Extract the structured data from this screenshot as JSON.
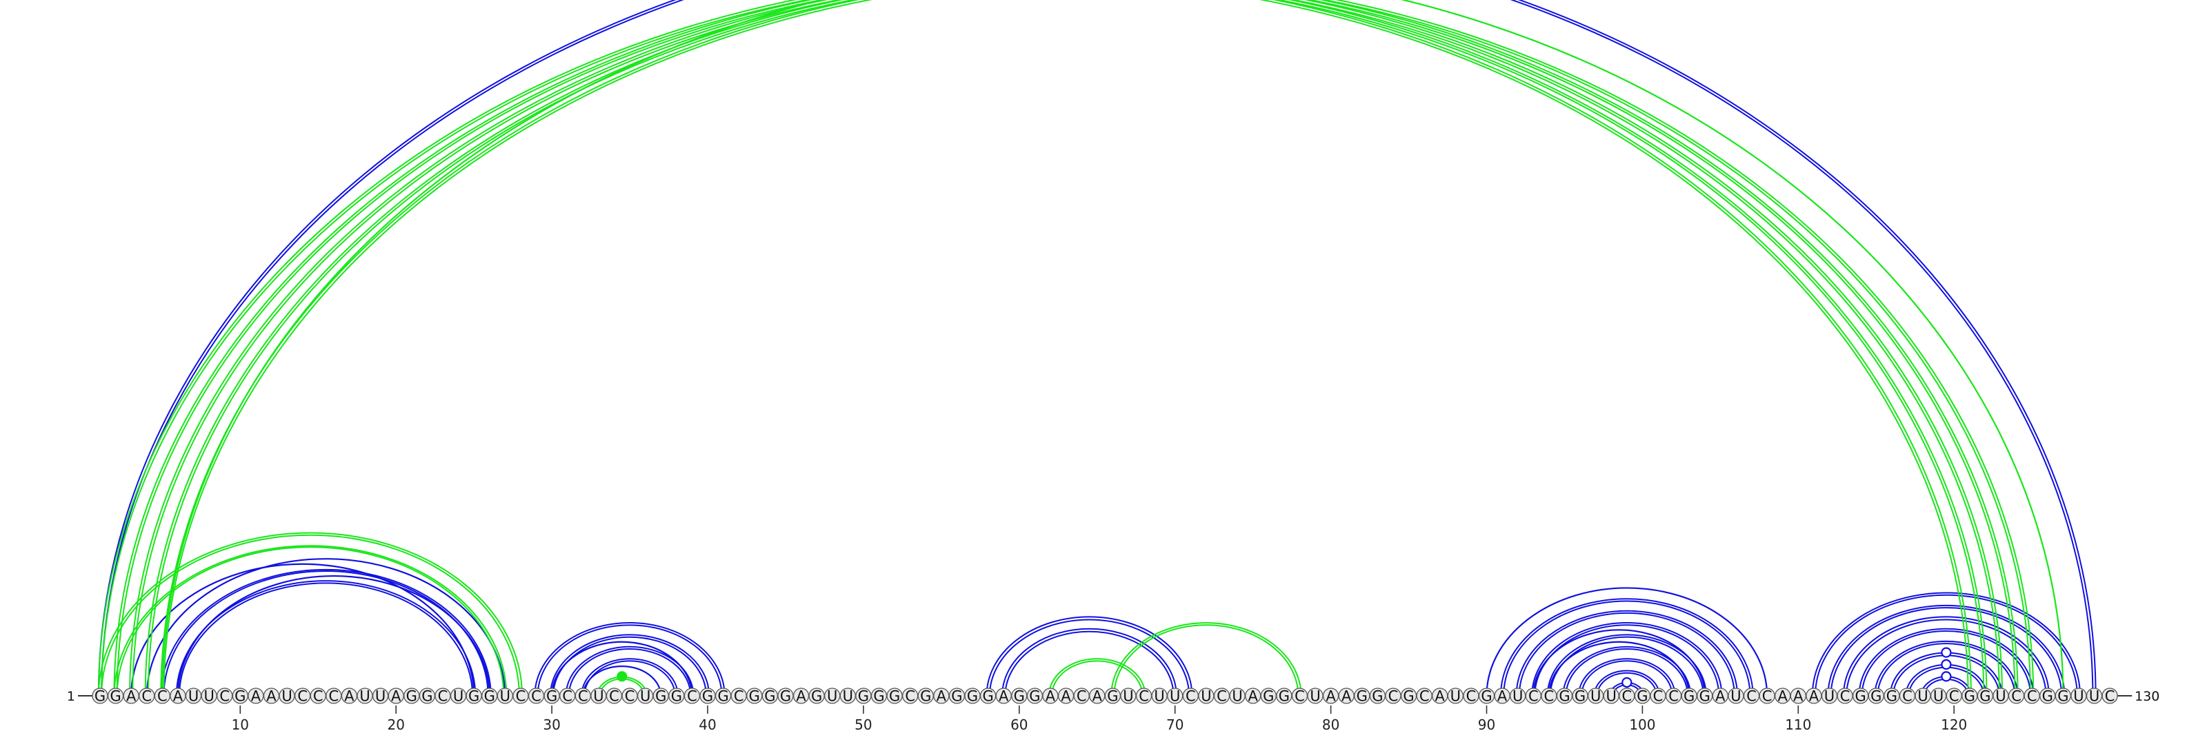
{
  "sequence": {
    "label_start": "1",
    "label_end": "130",
    "bases": "GGACCAUUCGAAUCCCAUUAGGCUGGUCCGCCUCCUGGCGGCGGGAGUUGGGCGAGGGAGGAACAGUCUUCUCUAGGCUAAGGCGCAUCGAUCCGGUUCGCCGGAUCCAAAUCGGGCUUCGGUCCGGUUC"
  },
  "ticks": {
    "values": [
      10,
      20,
      30,
      40,
      50,
      60,
      70,
      80,
      90,
      100,
      110,
      120
    ],
    "labels": [
      "10",
      "20",
      "30",
      "40",
      "50",
      "60",
      "70",
      "80",
      "90",
      "100",
      "110",
      "120"
    ]
  },
  "colors": {
    "blue_pair": "#1010e0",
    "green_pair": "#19e619",
    "backbone": "#333333",
    "base_fill": "#e9e9e9"
  },
  "arcs": {
    "green_double": [
      [
        1,
        121
      ],
      [
        2,
        122
      ],
      [
        3,
        123
      ],
      [
        4,
        124
      ],
      [
        5,
        125
      ],
      [
        1,
        28
      ],
      [
        2,
        27
      ],
      [
        33,
        36
      ],
      [
        62,
        68
      ],
      [
        66,
        78
      ]
    ],
    "green_single": [
      [
        5,
        127
      ]
    ],
    "blue_double": [
      [
        1,
        129
      ],
      [
        5,
        26
      ],
      [
        6,
        25
      ],
      [
        29,
        41
      ],
      [
        30,
        40
      ],
      [
        31,
        39
      ],
      [
        32,
        38
      ],
      [
        58,
        71
      ],
      [
        59,
        70
      ],
      [
        91,
        107
      ],
      [
        92,
        106
      ],
      [
        93,
        105
      ],
      [
        94,
        104
      ],
      [
        95,
        103
      ],
      [
        96,
        102
      ],
      [
        97,
        101
      ],
      [
        98,
        100
      ],
      [
        111,
        128
      ],
      [
        112,
        127
      ],
      [
        113,
        126
      ],
      [
        114,
        125
      ],
      [
        115,
        124
      ],
      [
        116,
        123
      ],
      [
        117,
        122
      ],
      [
        118,
        121
      ]
    ],
    "blue_single": [
      [
        3,
        25
      ],
      [
        4,
        27
      ],
      [
        6,
        26
      ],
      [
        30,
        39
      ],
      [
        32,
        37
      ],
      [
        90,
        108
      ],
      [
        93,
        104
      ],
      [
        94,
        103
      ]
    ]
  },
  "markers": [
    {
      "pos": 65.5,
      "height_of": [
        1,
        129
      ],
      "style": "open",
      "color": "blue_pair"
    },
    {
      "pos": 34.5,
      "height_of": [
        33,
        36
      ],
      "style": "filled",
      "color": "green_pair"
    },
    {
      "pos": 99,
      "height_of": [
        98,
        100
      ],
      "style": "open",
      "color": "blue_pair"
    },
    {
      "pos": 119.5,
      "height_of": [
        116,
        123
      ],
      "style": "open",
      "color": "blue_pair"
    },
    {
      "pos": 119.5,
      "height_of": [
        117,
        122
      ],
      "style": "open",
      "color": "blue_pair"
    },
    {
      "pos": 119.5,
      "height_of": [
        118,
        121
      ],
      "style": "open",
      "color": "blue_pair"
    }
  ]
}
